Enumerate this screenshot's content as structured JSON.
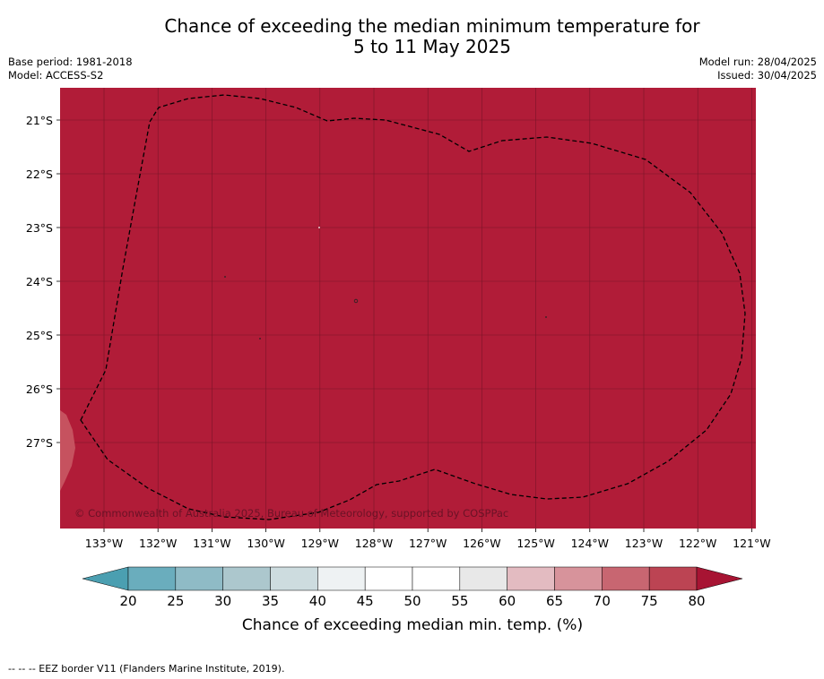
{
  "title": {
    "line1": "Chance of exceeding the median minimum temperature for",
    "line2": "5 to 11 May 2025"
  },
  "meta": {
    "base_period": "Base period: 1981-2018",
    "model": "Model: ACCESS-S2",
    "model_run": "Model run: 28/04/2025",
    "issued": "Issued: 30/04/2025"
  },
  "map": {
    "fill_color": "#b11c38",
    "lat_labels": [
      "21°S",
      "22°S",
      "23°S",
      "24°S",
      "25°S",
      "26°S",
      "27°S"
    ],
    "lon_labels": [
      "133°W",
      "132°W",
      "131°W",
      "130°W",
      "129°W",
      "128°W",
      "127°W",
      "126°W",
      "125°W",
      "124°W",
      "123°W",
      "122°W",
      "121°W"
    ],
    "copyright": "© Commonwealth of Australia 2025, Bureau of Meteorology, supported by COSPPac",
    "eez_border": "dashed"
  },
  "colorbar": {
    "ticks": [
      "20",
      "25",
      "30",
      "35",
      "40",
      "45",
      "50",
      "55",
      "60",
      "65",
      "70",
      "75",
      "80"
    ],
    "colors": [
      "#6aadbd",
      "#8fbbc6",
      "#acc7cd",
      "#cddcdf",
      "#eef2f3",
      "#ffffff",
      "#ffffff",
      "#e8e8e8",
      "#e3bbc1",
      "#d7939b",
      "#c86671",
      "#bc4453"
    ],
    "under_color": "#4b9fb1",
    "over_color": "#a71433",
    "label": "Chance of exceeding median min. temp. (%)"
  },
  "footnote": "--  --  -- EEZ border V11 (Flanders Marine Institute, 2019)."
}
